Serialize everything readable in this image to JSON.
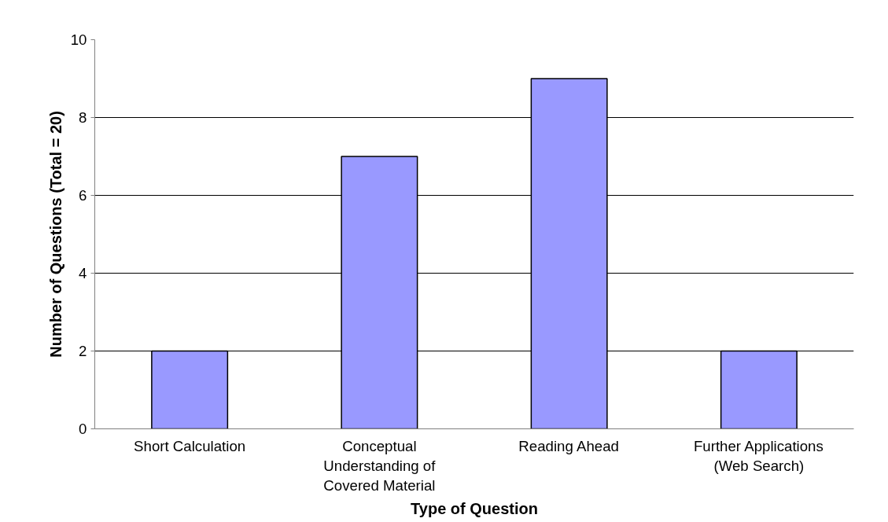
{
  "chart_data": {
    "type": "bar",
    "xlabel": "Type of Question",
    "ylabel": "Number of Questions (Total = 20)",
    "categories": [
      "Short Calculation",
      "Conceptual Understanding of Covered Material",
      "Reading Ahead",
      "Further Applications (Web Search)"
    ],
    "values": [
      2,
      7,
      9,
      2
    ],
    "color": "#9999ff",
    "ylim": [
      0,
      10
    ],
    "yticks": [
      0,
      2,
      4,
      6,
      8,
      10
    ],
    "grid": "y"
  }
}
